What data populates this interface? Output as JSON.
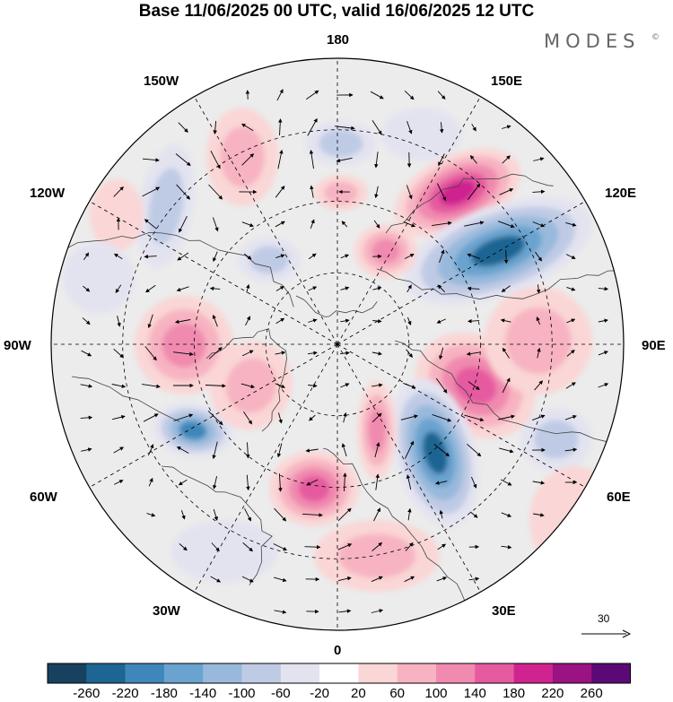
{
  "title": "Base 11/06/2025 00 UTC, valid 16/06/2025 12 UTC",
  "brand": "MODES",
  "brand_mark": "©",
  "longitude_labels": {
    "top": "180",
    "top_left": "150W",
    "top_right": "150E",
    "upper_left": "120W",
    "upper_right": "120E",
    "left": "90W",
    "right": "90E",
    "lower_left": "60W",
    "lower_right": "60E",
    "bottom_left": "30W",
    "bottom_right": "30E",
    "bottom": "0"
  },
  "vector_scale": "30",
  "colorbar": {
    "colors": [
      "#17415f",
      "#1d6592",
      "#3e87ba",
      "#6aa3cf",
      "#98b9dc",
      "#bfcbe5",
      "#e3e3f0",
      "#ffffff",
      "#fad6d6",
      "#f7b3c1",
      "#f08aaf",
      "#e65aa0",
      "#cf2490",
      "#9b1283",
      "#5b0a75"
    ],
    "labels": [
      "-260",
      "-220",
      "-180",
      "-140",
      "-100",
      "-60",
      "-20",
      "20",
      "60",
      "100",
      "140",
      "180",
      "220",
      "260"
    ]
  },
  "icons": {
    "scale_arrow": "right-arrow-icon"
  }
}
